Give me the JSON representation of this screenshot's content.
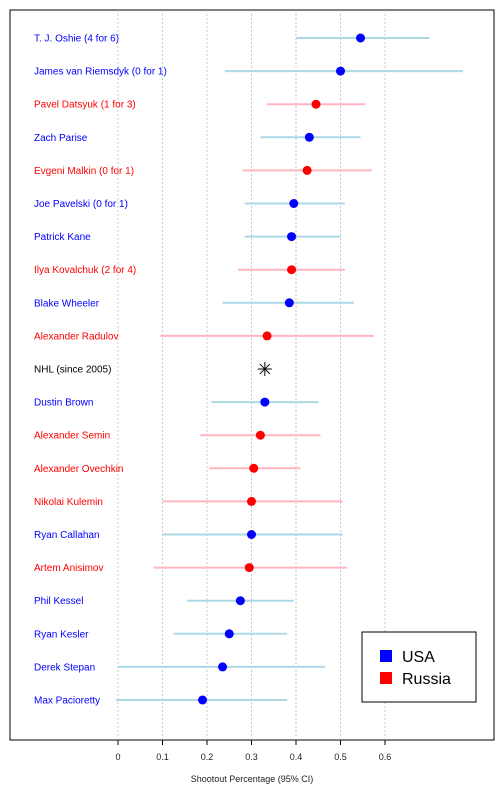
{
  "chart_data": {
    "type": "scatter",
    "subtype": "point-with-error-bars",
    "title": "",
    "xlabel": "Shootout Percentage (95% CI)",
    "ylabel": "",
    "xlim": [
      -0.02,
      0.85
    ],
    "x_ticks": [
      0,
      0.1,
      0.2,
      0.3,
      0.4,
      0.5,
      0.6
    ],
    "x_tick_labels": [
      "0",
      "0.1",
      "0.2",
      "0.3",
      "0.4",
      "0.5",
      "0.6"
    ],
    "grid": "vertical dotted",
    "legend": {
      "position": "bottom-right",
      "entries": [
        {
          "label": "USA",
          "color": "#0000ff"
        },
        {
          "label": "Russia",
          "color": "#ff0000"
        }
      ]
    },
    "colors": {
      "USA": {
        "point": "#0000ff",
        "ci": "#add8e6"
      },
      "Russia": {
        "point": "#ff0000",
        "ci": "#ffb6c1"
      },
      "NHL": {
        "point": "#000000"
      }
    },
    "rows": [
      {
        "label": "T. J. Oshie (4 for 6)",
        "group": "USA",
        "value": 0.545,
        "ci": [
          0.4,
          0.7
        ]
      },
      {
        "label": "James van Riemsdyk (0 for 1)",
        "group": "USA",
        "value": 0.5,
        "ci": [
          0.24,
          0.775
        ]
      },
      {
        "label": "Pavel Datsyuk (1 for 3)",
        "group": "Russia",
        "value": 0.445,
        "ci": [
          0.335,
          0.555
        ]
      },
      {
        "label": "Zach Parise",
        "group": "USA",
        "value": 0.43,
        "ci": [
          0.32,
          0.545
        ]
      },
      {
        "label": "Evgeni Malkin (0 for 1)",
        "group": "Russia",
        "value": 0.425,
        "ci": [
          0.28,
          0.57
        ]
      },
      {
        "label": "Joe Pavelski (0 for 1)",
        "group": "USA",
        "value": 0.395,
        "ci": [
          0.285,
          0.51
        ]
      },
      {
        "label": "Patrick Kane",
        "group": "USA",
        "value": 0.39,
        "ci": [
          0.285,
          0.5
        ]
      },
      {
        "label": "Ilya Kovalchuk (2 for 4)",
        "group": "Russia",
        "value": 0.39,
        "ci": [
          0.27,
          0.51
        ]
      },
      {
        "label": "Blake Wheeler",
        "group": "USA",
        "value": 0.385,
        "ci": [
          0.235,
          0.53
        ]
      },
      {
        "label": "Alexander Radulov",
        "group": "Russia",
        "value": 0.335,
        "ci": [
          0.095,
          0.575
        ]
      },
      {
        "label": "NHL (since 2005)",
        "group": "NHL",
        "value": 0.33,
        "ci": null
      },
      {
        "label": "Dustin Brown",
        "group": "USA",
        "value": 0.33,
        "ci": [
          0.21,
          0.45
        ]
      },
      {
        "label": "Alexander Semin",
        "group": "Russia",
        "value": 0.32,
        "ci": [
          0.185,
          0.455
        ]
      },
      {
        "label": "Alexander Ovechkin",
        "group": "Russia",
        "value": 0.305,
        "ci": [
          0.205,
          0.41
        ]
      },
      {
        "label": "Nikolai Kulemin",
        "group": "Russia",
        "value": 0.3,
        "ci": [
          0.1,
          0.505
        ]
      },
      {
        "label": "Ryan Callahan",
        "group": "USA",
        "value": 0.3,
        "ci": [
          0.1,
          0.505
        ]
      },
      {
        "label": "Artem Anisimov",
        "group": "Russia",
        "value": 0.295,
        "ci": [
          0.08,
          0.515
        ]
      },
      {
        "label": "Phil Kessel",
        "group": "USA",
        "value": 0.275,
        "ci": [
          0.155,
          0.395
        ]
      },
      {
        "label": "Ryan Kesler",
        "group": "USA",
        "value": 0.25,
        "ci": [
          0.125,
          0.38
        ]
      },
      {
        "label": "Derek Stepan",
        "group": "USA",
        "value": 0.235,
        "ci": [
          0.0,
          0.465
        ]
      },
      {
        "label": "Max Pacioretty",
        "group": "USA",
        "value": 0.19,
        "ci": [
          -0.005,
          0.38
        ]
      }
    ]
  }
}
